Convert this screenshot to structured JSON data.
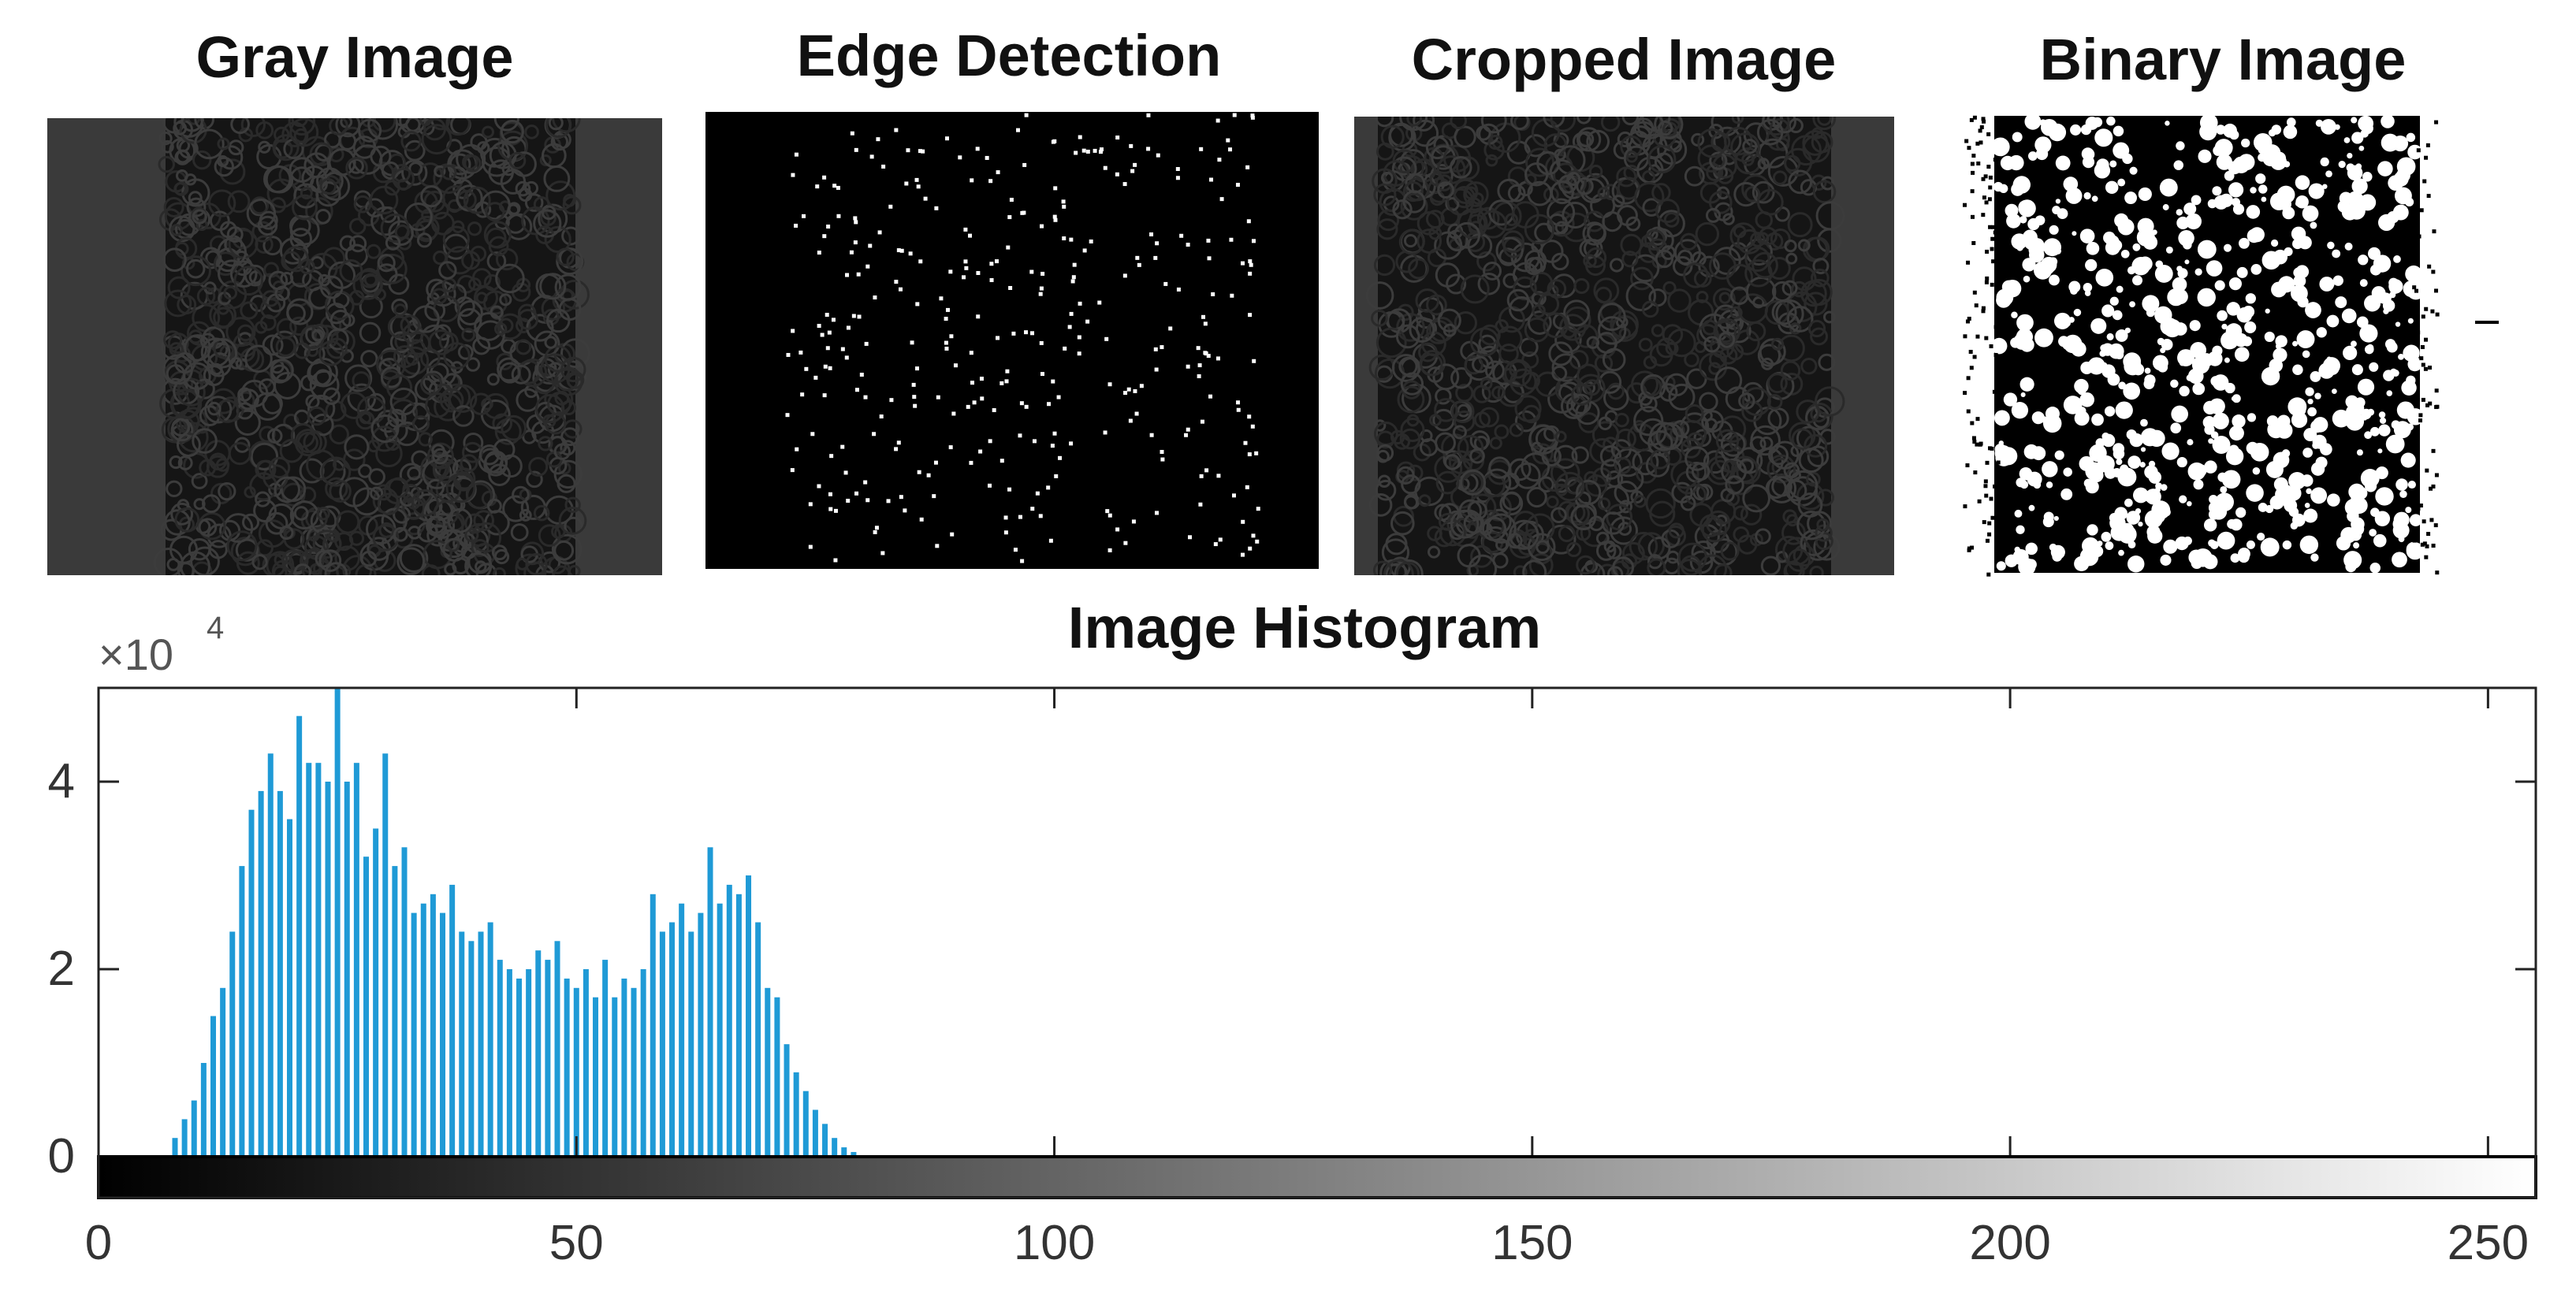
{
  "panels": [
    {
      "title": "Gray Image"
    },
    {
      "title": "Edge Detection"
    },
    {
      "title": "Cropped Image"
    },
    {
      "title": "Binary Image"
    }
  ],
  "histogram": {
    "title": "Image Histogram",
    "exponent_label": "×10",
    "exponent_power": "4"
  },
  "chart_data": {
    "type": "bar",
    "title": "Image Histogram",
    "xlabel": "",
    "ylabel": "",
    "xlim": [
      0,
      255
    ],
    "ylim": [
      0,
      5
    ],
    "y_multiplier": "x10^4",
    "xticks": [
      0,
      50,
      100,
      150,
      200,
      250
    ],
    "yticks": [
      0,
      2,
      4
    ],
    "bar_color": "#1f9ad6",
    "colorbar": "gray",
    "x": [
      8,
      9,
      10,
      11,
      12,
      13,
      14,
      15,
      16,
      17,
      18,
      19,
      20,
      21,
      22,
      23,
      24,
      25,
      26,
      27,
      28,
      29,
      30,
      31,
      32,
      33,
      34,
      35,
      36,
      37,
      38,
      39,
      40,
      41,
      42,
      43,
      44,
      45,
      46,
      47,
      48,
      49,
      50,
      51,
      52,
      53,
      54,
      55,
      56,
      57,
      58,
      59,
      60,
      61,
      62,
      63,
      64,
      65,
      66,
      67,
      68,
      69,
      70,
      71,
      72,
      73,
      74,
      75,
      76,
      77,
      78,
      79
    ],
    "values": [
      0.2,
      0.4,
      0.6,
      1.0,
      1.5,
      1.8,
      2.4,
      3.1,
      3.7,
      3.9,
      4.3,
      3.9,
      3.6,
      4.7,
      4.2,
      4.2,
      4.0,
      5.0,
      4.0,
      4.2,
      3.2,
      3.5,
      4.3,
      3.1,
      3.3,
      2.6,
      2.7,
      2.8,
      2.6,
      2.9,
      2.4,
      2.3,
      2.4,
      2.5,
      2.1,
      2.0,
      1.9,
      2.0,
      2.2,
      2.1,
      2.3,
      1.9,
      1.8,
      2.0,
      1.7,
      2.1,
      1.7,
      1.9,
      1.8,
      2.0,
      2.8,
      2.4,
      2.5,
      2.7,
      2.4,
      2.6,
      3.3,
      2.7,
      2.9,
      2.8,
      3.0,
      2.5,
      1.8,
      1.7,
      1.2,
      0.9,
      0.7,
      0.5,
      0.35,
      0.2,
      0.1,
      0.05
    ]
  }
}
